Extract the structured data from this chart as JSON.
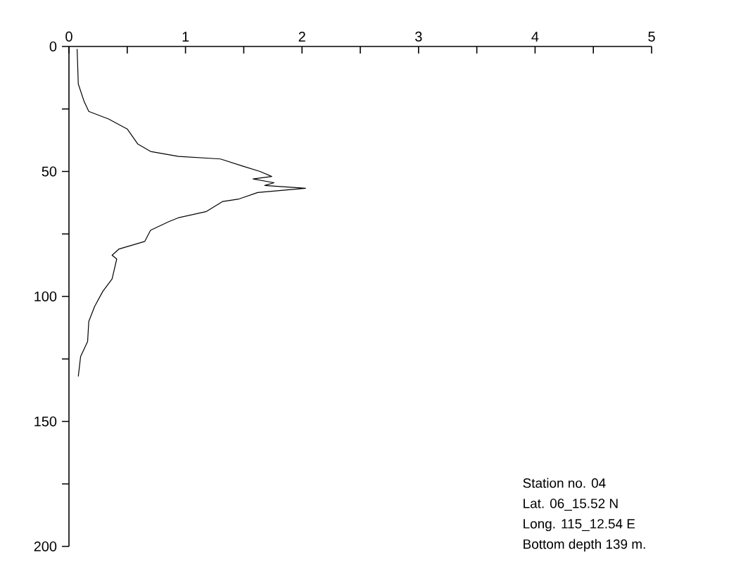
{
  "chart_data": {
    "type": "line",
    "series": [
      {
        "color": "#000000",
        "x": [
          0.07,
          0.08,
          0.13,
          0.17,
          0.34,
          0.5,
          0.59,
          0.7,
          0.94,
          1.3,
          1.5,
          1.64,
          1.74,
          1.58,
          1.76,
          1.68,
          2.03,
          1.62,
          1.46,
          1.32,
          1.18,
          0.94,
          0.86,
          0.7,
          0.65,
          0.43,
          0.37,
          0.41,
          0.37,
          0.29,
          0.22,
          0.17,
          0.16,
          0.1,
          0.08
        ],
        "values": [
          1,
          15,
          22,
          26,
          29,
          33,
          39,
          42,
          44,
          45,
          48,
          50,
          52,
          53,
          54.5,
          55.6,
          56.7,
          58.4,
          61,
          62,
          66,
          68.5,
          70,
          73.5,
          78,
          81,
          83.5,
          85,
          93,
          98,
          104,
          110,
          118,
          124,
          132
        ]
      }
    ],
    "xlim": [
      0,
      5
    ],
    "xticks": [
      0,
      {
        "value": 0.5,
        "label": null
      },
      1,
      {
        "value": 1.5,
        "label": null
      },
      2,
      {
        "value": 2.5,
        "label": null
      },
      3,
      {
        "value": 3.5,
        "label": null
      },
      4,
      {
        "value": 4.5,
        "label": null
      },
      5
    ],
    "ylim": [
      200,
      0
    ],
    "yticks": [
      0,
      {
        "value": 25,
        "label": null
      },
      50,
      {
        "value": 75,
        "label": null
      },
      100,
      {
        "value": 125,
        "label": null
      },
      150,
      {
        "value": 175,
        "label": null
      },
      200
    ],
    "grid": false,
    "marker": "none",
    "line_style": "solid",
    "annotations": [
      "Station no. 04",
      "Lat. 06_15.52 N",
      "Long. 115_12.54 E",
      "Bottom depth 139 m."
    ]
  }
}
